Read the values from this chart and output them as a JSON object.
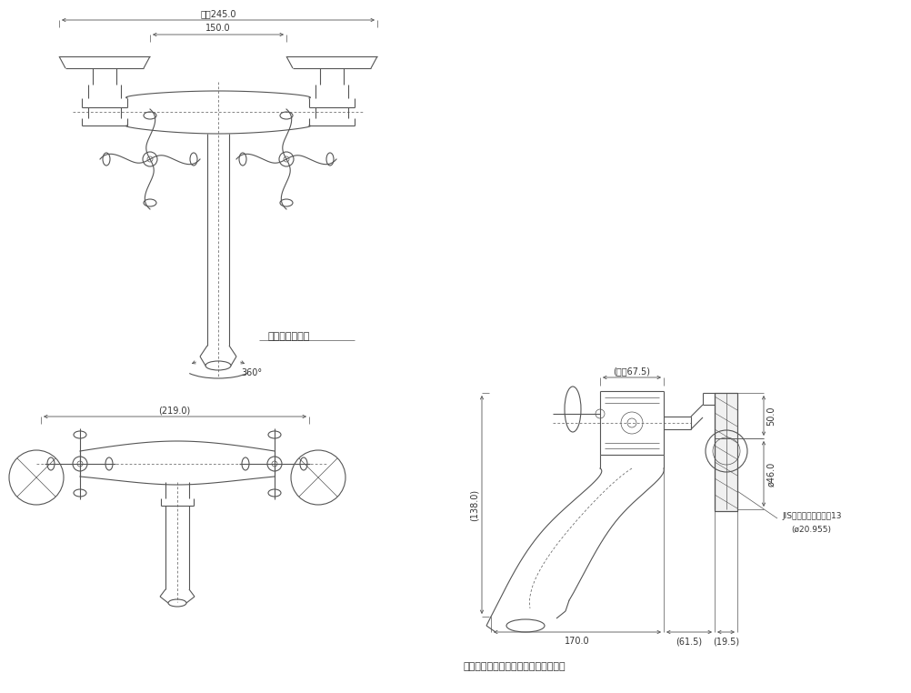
{
  "bg_color": "#ffffff",
  "line_color": "#555555",
  "fig_width": 10.02,
  "fig_height": 7.62,
  "note_text": "注：（　）内寸法は参考寸法である。",
  "rotation_label": "吐水口回転角度",
  "labels": {
    "dim_245": "最大245.0",
    "dim_150": "150.0",
    "dim_219": "(219.0)",
    "dim_138": "(138.0)",
    "dim_170": "170.0",
    "dim_615": "(61.5)",
    "dim_195": "(19.5)",
    "dim_50": "50.0",
    "dim_46": "ø46.0",
    "dim_67": "(最大67.5)",
    "dim_360": "360°",
    "jis_label": "JIS給水管取付ねじ　13",
    "jis_sub": "(ø20.955)"
  }
}
